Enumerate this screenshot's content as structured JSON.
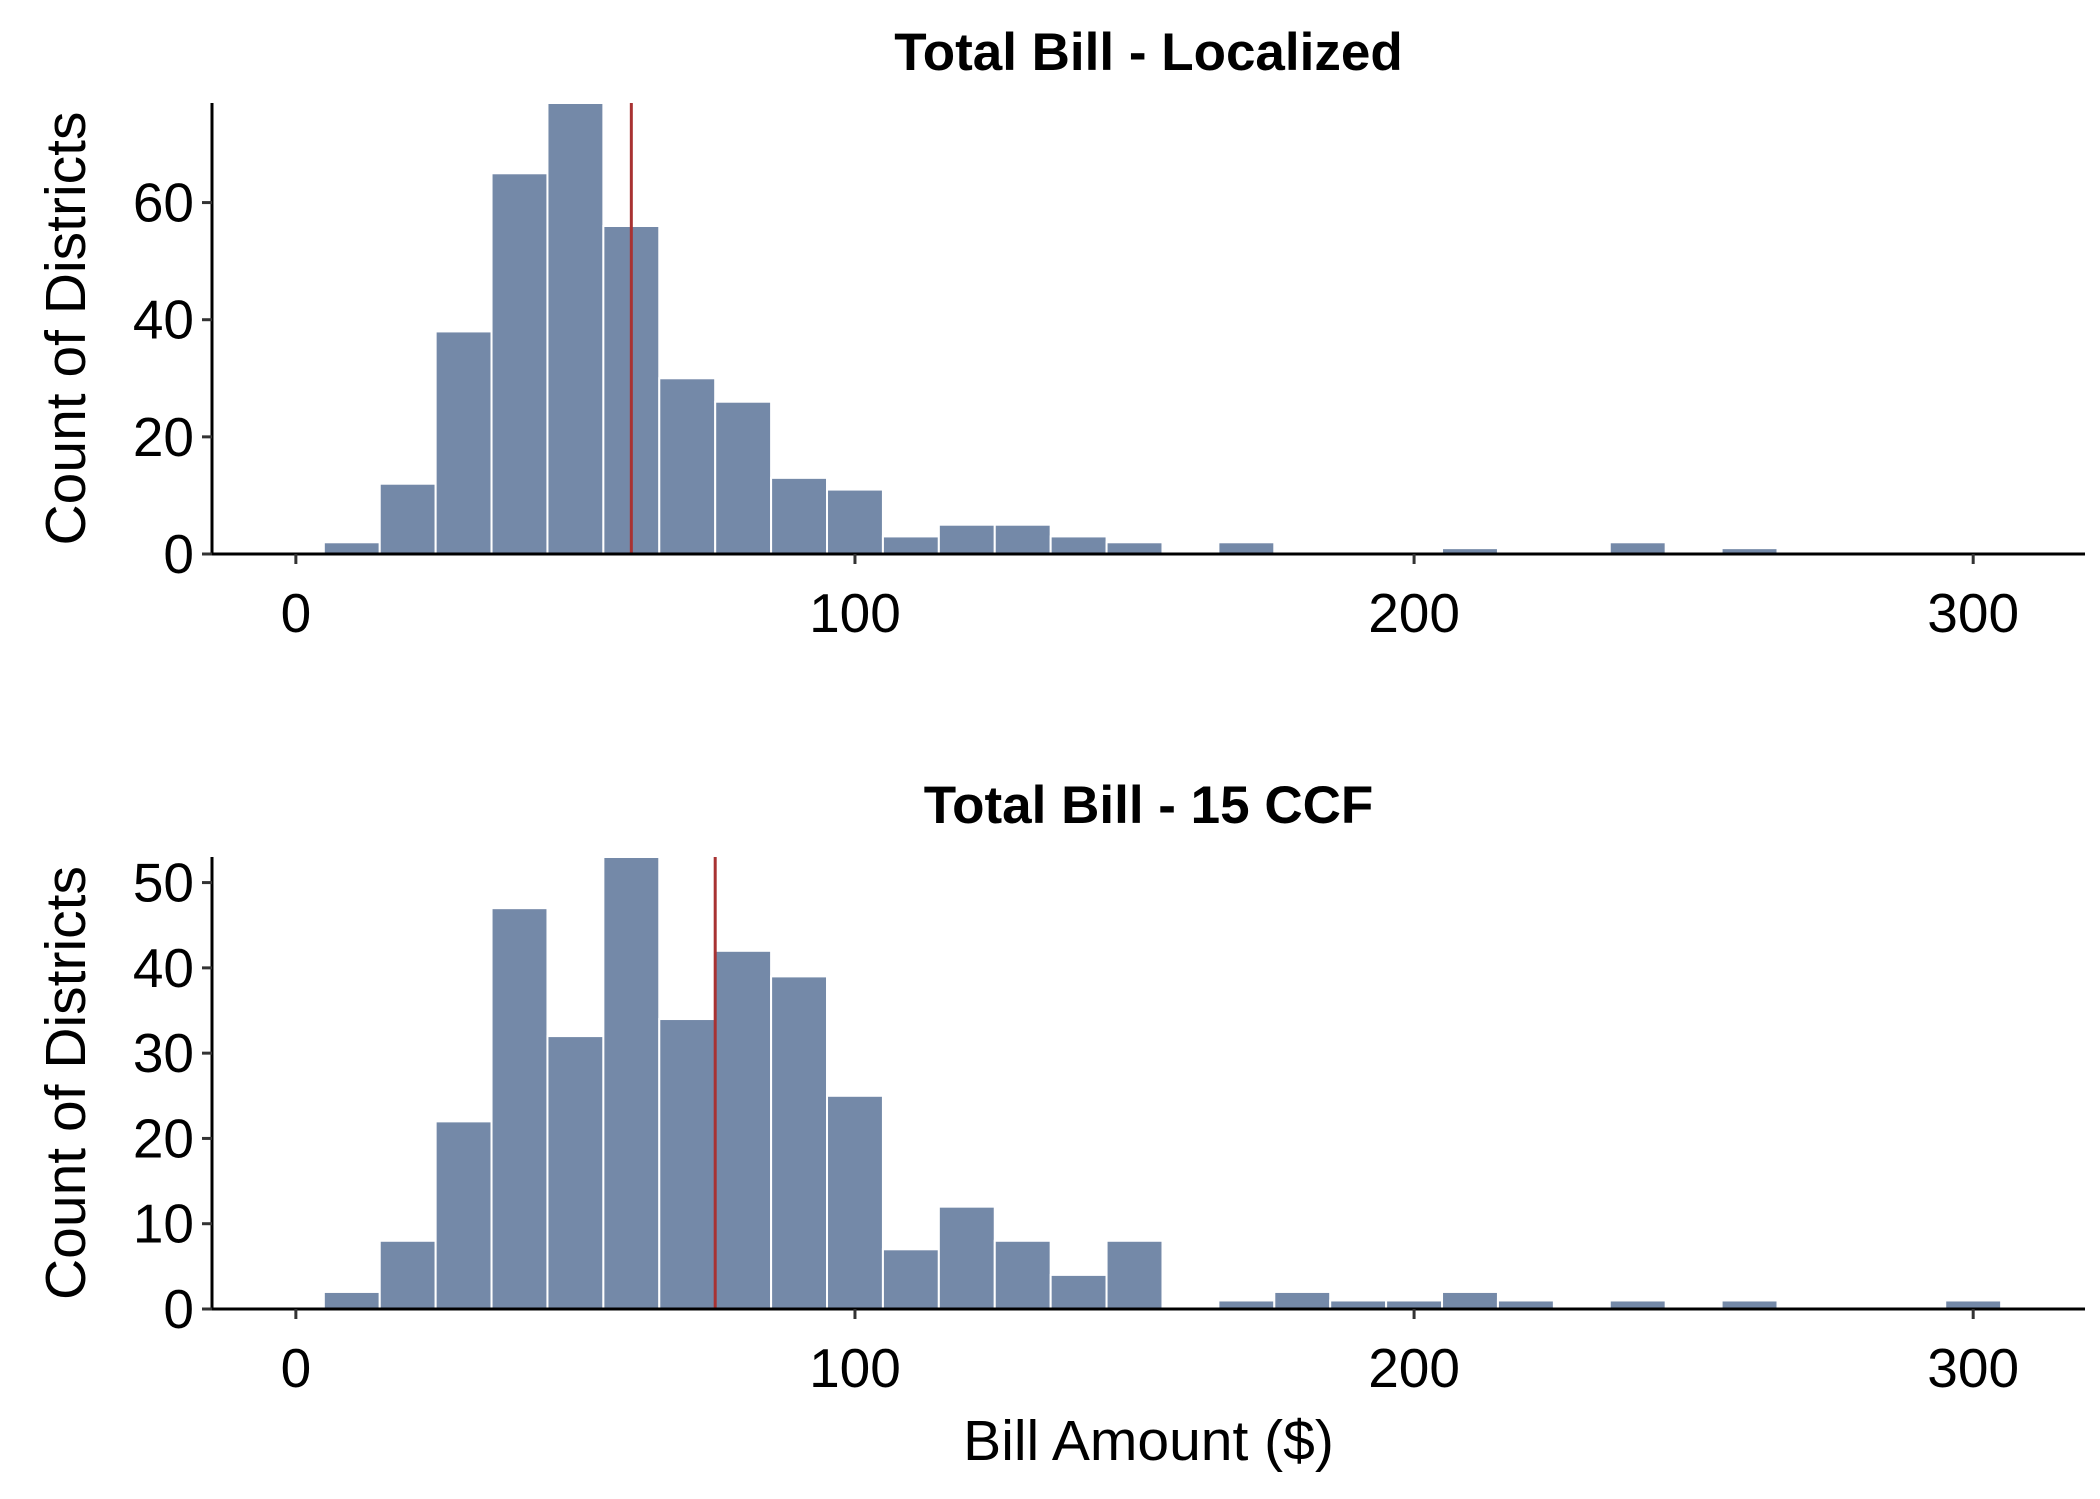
{
  "colors": {
    "bar": "#7489a8",
    "median_line": "#a83232",
    "axis": "#000000"
  },
  "chart_data": [
    {
      "type": "bar",
      "title": "Total Bill - Localized",
      "xlabel": "",
      "ylabel": "Count of Districts",
      "bin_width": 10,
      "bin_centers": [
        10,
        20,
        30,
        40,
        50,
        60,
        70,
        80,
        90,
        100,
        110,
        120,
        130,
        140,
        150,
        170,
        210,
        240,
        260
      ],
      "values": [
        2,
        12,
        38,
        65,
        77,
        56,
        30,
        26,
        13,
        11,
        3,
        5,
        5,
        3,
        2,
        2,
        1,
        2,
        1
      ],
      "xlim": [
        -15,
        320
      ],
      "ylim": [
        0,
        77
      ],
      "xticks": [
        "0",
        "100",
        "200",
        "300"
      ],
      "yticks": [
        "0",
        "20",
        "40",
        "60"
      ],
      "reference_line_x": 60,
      "grid": false
    },
    {
      "type": "bar",
      "title": "Total Bill - 15 CCF",
      "xlabel": "Bill Amount ($)",
      "ylabel": "Count of Districts",
      "bin_width": 10,
      "bin_centers": [
        10,
        20,
        30,
        40,
        50,
        60,
        70,
        80,
        90,
        100,
        110,
        120,
        130,
        140,
        150,
        170,
        180,
        190,
        200,
        210,
        220,
        240,
        260,
        300
      ],
      "values": [
        2,
        8,
        22,
        47,
        32,
        53,
        34,
        42,
        39,
        25,
        7,
        12,
        8,
        4,
        8,
        1,
        2,
        1,
        1,
        2,
        1,
        1,
        1,
        1
      ],
      "xlim": [
        -15,
        320
      ],
      "ylim": [
        0,
        53
      ],
      "xticks": [
        "0",
        "100",
        "200",
        "300"
      ],
      "yticks": [
        "0",
        "10",
        "20",
        "30",
        "40",
        "50"
      ],
      "reference_line_x": 75,
      "grid": false
    }
  ]
}
